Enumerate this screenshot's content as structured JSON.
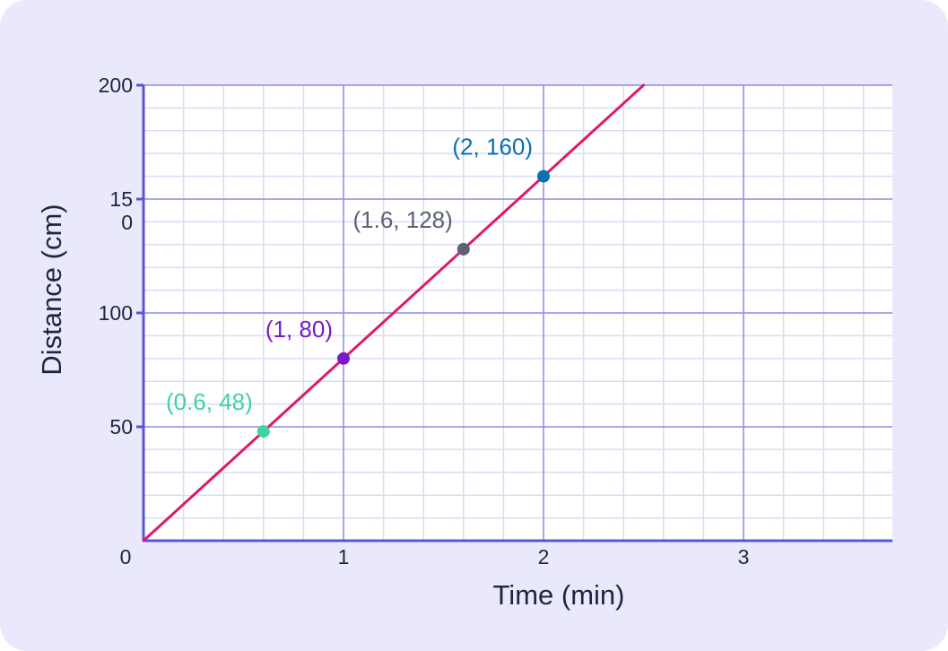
{
  "chart_data": {
    "type": "line",
    "xlabel": "Time (min)",
    "ylabel": "Distance (cm)",
    "xlim": [
      0,
      3.7
    ],
    "ylim": [
      0,
      200
    ],
    "x_ticks": [
      {
        "value": 1,
        "label": "1"
      },
      {
        "value": 2,
        "label": "2"
      },
      {
        "value": 3,
        "label": "3"
      }
    ],
    "origin_label": "0",
    "y_ticks": [
      {
        "value": 50,
        "lines": [
          "50"
        ]
      },
      {
        "value": 100,
        "lines": [
          "100"
        ]
      },
      {
        "value": 150,
        "lines": [
          "15",
          "0"
        ]
      },
      {
        "value": 200,
        "lines": [
          "200"
        ]
      }
    ],
    "x_minor_step": 0.2,
    "y_minor_step": 10,
    "grid": true,
    "line": {
      "x": [
        0,
        2.5
      ],
      "y": [
        0,
        200
      ],
      "color": "#e0196b"
    },
    "points": [
      {
        "x": 0.6,
        "y": 48,
        "label": "(0.6, 48)",
        "color": "#3fd3a4"
      },
      {
        "x": 1,
        "y": 80,
        "label": "(1, 80)",
        "color": "#7a19c9"
      },
      {
        "x": 1.6,
        "y": 128,
        "label": "(1.6, 128)",
        "color": "#5b6274"
      },
      {
        "x": 2,
        "y": 160,
        "label": "(2, 160)",
        "color": "#0b6fb0"
      }
    ]
  },
  "style": {
    "card_background": "#e9e9fb",
    "plot_background": "#ffffff",
    "major_grid_color": "#8d8ae6",
    "minor_grid_color": "#d9dcf4",
    "axis_color": "#5a55d6",
    "text_color": "#1f2540"
  }
}
